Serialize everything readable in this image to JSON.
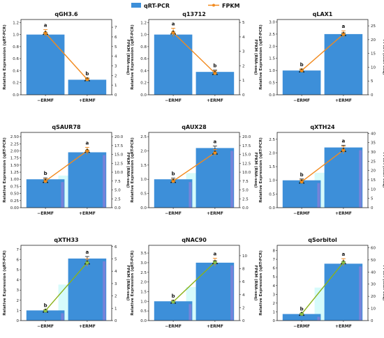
{
  "legend": {
    "bar_label": "qRT-PCR",
    "line_label": "FPKM"
  },
  "colors": {
    "bar": "#3d8fd9",
    "line_orange": "#f28a1e",
    "line_green": "#8bb21a",
    "marker_green": "#8bc34a",
    "cyan_band": "#d6fbfb",
    "purple_band": "#8a7fd8"
  },
  "chart_data": [
    {
      "type": "bar",
      "title": "qGH3.6",
      "categories": [
        "−ERMF",
        "+ERMF"
      ],
      "values": [
        1.0,
        0.25
      ],
      "errors": [
        0.03,
        0.02
      ],
      "sig": [
        "a",
        "b"
      ],
      "line_values": [
        6.4,
        1.6
      ],
      "line_errors": [
        0.35,
        0.15
      ],
      "ylabel": "Relative Expression (qRT-PCR)",
      "y2label": "FPKM (RNA-seq)",
      "ylim": [
        0,
        1.25
      ],
      "y2lim": [
        0,
        7.8
      ],
      "yticks": [
        "0.0",
        "0.2",
        "0.4",
        "0.6",
        "0.8",
        "1.0",
        "1.2"
      ],
      "y2ticks": [
        "0",
        "1",
        "2",
        "3",
        "4",
        "5",
        "6",
        "7"
      ],
      "line_color": "orange",
      "bands": false
    },
    {
      "type": "bar",
      "title": "q13712",
      "categories": [
        "−ERMF",
        "+ERMF"
      ],
      "values": [
        1.0,
        0.38
      ],
      "errors": [
        0.04,
        0.03
      ],
      "sig": [
        "a",
        "b"
      ],
      "line_values": [
        4.3,
        1.5
      ],
      "line_errors": [
        0.3,
        0.15
      ],
      "ylabel": "Relative Expression (qRT-PCR)",
      "y2label": "FPKM (RNA-seq)",
      "ylim": [
        0,
        1.25
      ],
      "y2lim": [
        0,
        5.2
      ],
      "yticks": [
        "0.0",
        "0.2",
        "0.4",
        "0.6",
        "0.8",
        "1.0",
        "1.2"
      ],
      "y2ticks": [
        "0",
        "1",
        "2",
        "3",
        "4",
        "5"
      ],
      "line_color": "orange",
      "bands": false
    },
    {
      "type": "bar",
      "title": "qLAX1",
      "categories": [
        "−ERMF",
        "+ERMF"
      ],
      "values": [
        1.0,
        2.5
      ],
      "errors": [
        0.04,
        0.05
      ],
      "sig": [
        "b",
        "a"
      ],
      "line_values": [
        8.8,
        22.0
      ],
      "line_errors": [
        0.6,
        1.2
      ],
      "ylabel": "Relative Expression (qRT-PCR)",
      "y2label": "FPKM (RNA-seq)",
      "ylim": [
        0,
        3.1
      ],
      "y2lim": [
        0,
        27.3
      ],
      "yticks": [
        "0.0",
        "0.5",
        "1.0",
        "1.5",
        "2.0",
        "2.5",
        "3.0"
      ],
      "y2ticks": [
        "0",
        "5",
        "10",
        "15",
        "20",
        "25"
      ],
      "line_color": "orange",
      "bands": false
    },
    {
      "type": "bar",
      "title": "qSAUR78",
      "categories": [
        "−ERMF",
        "+ERMF"
      ],
      "values": [
        1.0,
        1.95
      ],
      "errors": [
        0.05,
        0.07
      ],
      "sig": [
        "b",
        "a"
      ],
      "line_values": [
        7.5,
        16.0
      ],
      "line_errors": [
        0.6,
        1.0
      ],
      "ylabel": "Relative Expression (qRT-PCR)",
      "y2label": "FPKM (RNA-seq)",
      "ylim": [
        0,
        2.65
      ],
      "y2lim": [
        0,
        21.2
      ],
      "yticks": [
        "0.00",
        "0.25",
        "0.50",
        "0.75",
        "1.00",
        "1.25",
        "1.50",
        "1.75",
        "2.00",
        "2.25",
        "2.50"
      ],
      "y2ticks": [
        "0.0",
        "2.5",
        "5.0",
        "7.5",
        "10.0",
        "12.5",
        "15.0",
        "17.5",
        "20.0"
      ],
      "line_color": "orange",
      "bands": true
    },
    {
      "type": "bar",
      "title": "qAUX28",
      "categories": [
        "−ERMF",
        "+ERMF"
      ],
      "values": [
        1.0,
        2.1
      ],
      "errors": [
        0.04,
        0.07
      ],
      "sig": [
        "b",
        "a"
      ],
      "line_values": [
        7.5,
        15.5
      ],
      "line_errors": [
        0.5,
        0.9
      ],
      "ylabel": "Relative Expression (qRT-PCR)",
      "y2label": "FPKM (RNA-seq)",
      "ylim": [
        0,
        2.65
      ],
      "y2lim": [
        0,
        21.2
      ],
      "yticks": [
        "0.0",
        "0.5",
        "1.0",
        "1.5",
        "2.0",
        "2.5"
      ],
      "y2ticks": [
        "0.0",
        "2.5",
        "5.0",
        "7.5",
        "10.0",
        "12.5",
        "15.0",
        "17.5",
        "20.0"
      ],
      "line_color": "orange",
      "bands": true
    },
    {
      "type": "bar",
      "title": "qXTH24",
      "categories": [
        "−ERMF",
        "+ERMF"
      ],
      "values": [
        1.0,
        2.2
      ],
      "errors": [
        0.05,
        0.08
      ],
      "sig": [
        "b",
        "a"
      ],
      "line_values": [
        14.0,
        31.0
      ],
      "line_errors": [
        1.0,
        2.0
      ],
      "ylabel": "Relative Expression (qRT-PCR)",
      "y2label": "FPKM (RNA-seq)",
      "ylim": [
        0,
        2.75
      ],
      "y2lim": [
        0,
        40.5
      ],
      "yticks": [
        "0.0",
        "0.5",
        "1.0",
        "1.5",
        "2.0",
        "2.5"
      ],
      "y2ticks": [
        "0",
        "5",
        "10",
        "15",
        "20",
        "25",
        "30",
        "35",
        "40"
      ],
      "line_color": "orange",
      "bands": true
    },
    {
      "type": "bar",
      "title": "qXTH33",
      "categories": [
        "−ERMF",
        "+ERMF"
      ],
      "values": [
        1.0,
        6.1
      ],
      "errors": [
        0.05,
        0.2
      ],
      "sig": [
        "b",
        "a"
      ],
      "line_values": [
        0.8,
        4.7
      ],
      "line_errors": [
        0.06,
        0.3
      ],
      "ylabel": "Relative Expression (qRT-PCR)",
      "y2label": "FPKM (RNA-seq)",
      "ylim": [
        0,
        7.4
      ],
      "y2lim": [
        0,
        6.1
      ],
      "yticks": [
        "0",
        "1",
        "2",
        "3",
        "4",
        "5",
        "6",
        "7"
      ],
      "y2ticks": [
        "0",
        "1",
        "2",
        "3",
        "4",
        "5",
        "6"
      ],
      "line_color": "green",
      "bands": true
    },
    {
      "type": "bar",
      "title": "qNAC90",
      "categories": [
        "−ERMF",
        "+ERMF"
      ],
      "values": [
        1.0,
        3.0
      ],
      "errors": [
        0.05,
        0.1
      ],
      "sig": [
        "b",
        "a"
      ],
      "line_values": [
        2.9,
        9.0
      ],
      "line_errors": [
        0.2,
        0.6
      ],
      "ylabel": "Relative Expression (qRT-PCR)",
      "y2label": "FPKM (RNA-seq)",
      "ylim": [
        0,
        3.9
      ],
      "y2lim": [
        0,
        11.6
      ],
      "yticks": [
        "0.0",
        "0.5",
        "1.0",
        "1.5",
        "2.0",
        "2.5",
        "3.0",
        "3.5"
      ],
      "y2ticks": [
        "0",
        "2",
        "4",
        "6",
        "8",
        "10"
      ],
      "line_color": "green",
      "bands": true
    },
    {
      "type": "bar",
      "title": "qSorbitol",
      "categories": [
        "−ERMF",
        "+ERMF"
      ],
      "values": [
        0.75,
        6.5
      ],
      "errors": [
        0.05,
        0.2
      ],
      "sig": [
        "b",
        "a"
      ],
      "line_values": [
        5.5,
        48.0
      ],
      "line_errors": [
        0.4,
        3.0
      ],
      "ylabel": "Relative Expression (qRT-PCR)",
      "y2label": "FPKM (RNA-seq)",
      "ylim": [
        0,
        8.6
      ],
      "y2lim": [
        0,
        62
      ],
      "yticks": [
        "0",
        "1",
        "2",
        "3",
        "4",
        "5",
        "6",
        "7",
        "8"
      ],
      "y2ticks": [
        "0",
        "10",
        "20",
        "30",
        "40",
        "50",
        "60"
      ],
      "line_color": "green",
      "bands": true
    }
  ]
}
